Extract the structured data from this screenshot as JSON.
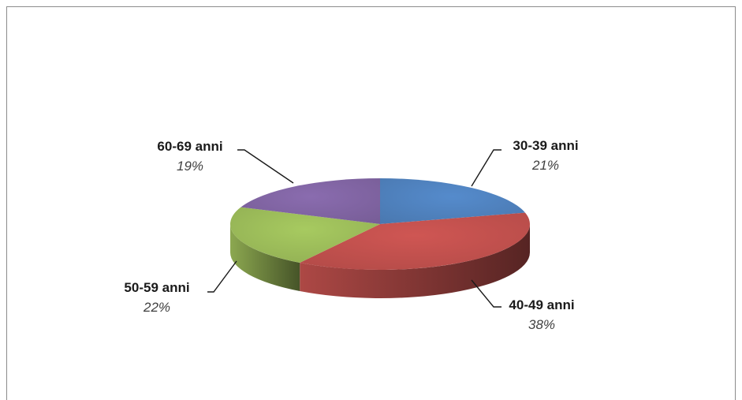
{
  "colors": {
    "background": "#ffffff",
    "frame": "#8c8c8c",
    "leader": "#1a1a1a"
  },
  "chart_data": {
    "type": "pie",
    "style": "3d-exploded-none",
    "title": "",
    "categories": [
      "30-39 anni",
      "40-49 anni",
      "50-59 anni",
      "60-69 anni"
    ],
    "values": [
      21,
      38,
      22,
      19
    ],
    "labels": [
      "21%",
      "38%",
      "22%",
      "19%"
    ],
    "colors": [
      "#4f81bd",
      "#c0504d",
      "#9bbb59",
      "#8064a2"
    ],
    "legend": "none"
  }
}
